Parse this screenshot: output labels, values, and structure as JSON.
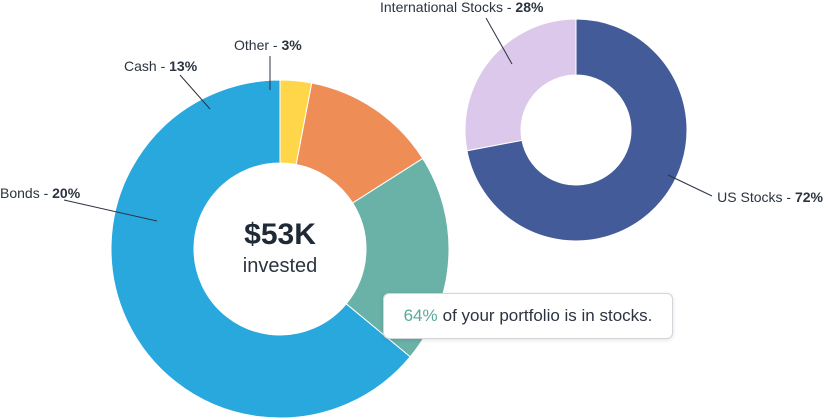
{
  "chart_data": [
    {
      "type": "pie",
      "style": "donut",
      "categories": [
        "Stocks",
        "Bonds",
        "Cash",
        "Other"
      ],
      "values": [
        64,
        20,
        13,
        3
      ],
      "labels": [
        {
          "name": "",
          "value": ""
        },
        {
          "name": "Bonds - ",
          "value": "20%"
        },
        {
          "name": "Cash - ",
          "value": "13%"
        },
        {
          "name": "Other - ",
          "value": "3%"
        }
      ],
      "colors": [
        "#29a8de",
        "#6ab1a7",
        "#ee8d55",
        "#ffd64a"
      ],
      "center": {
        "amount": "$53K",
        "caption": "invested"
      }
    },
    {
      "type": "pie",
      "style": "donut",
      "categories": [
        "US Stocks",
        "International Stocks"
      ],
      "values": [
        72,
        28
      ],
      "labels": [
        {
          "name": "US Stocks - ",
          "value": "72%"
        },
        {
          "name": "International Stocks - ",
          "value": "28%"
        }
      ],
      "colors": [
        "#445b99",
        "#dcc8ea"
      ]
    }
  ],
  "callout": {
    "highlight": "64%",
    "text": "of your portfolio is in stocks."
  }
}
